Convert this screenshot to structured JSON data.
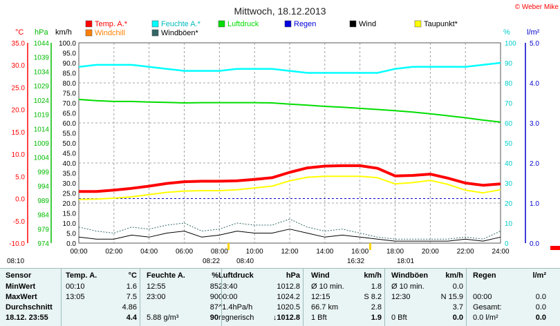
{
  "chart_data": {
    "type": "line",
    "title": "Mittwoch, 18.12.2013",
    "copyright": "© Weber Mike",
    "axes": {
      "temp": {
        "unit": "°C",
        "min": -10,
        "max": 35,
        "ticks": [
          "35.0",
          "30.0",
          "25.0",
          "20.0",
          "15.0",
          "10.0",
          "5.0",
          "0.0",
          "-5.0",
          "-10.0"
        ],
        "color": "#ff0000"
      },
      "pressure": {
        "unit": "hPa",
        "min": 974,
        "max": 1044,
        "ticks": [
          "1044",
          "1039",
          "1034",
          "1029",
          "1024",
          "1019",
          "1014",
          "1009",
          "1004",
          "999",
          "994",
          "989",
          "984",
          "979",
          "974"
        ],
        "color": "#00bb00"
      },
      "wind": {
        "unit": "km/h",
        "min": 0,
        "max": 100,
        "ticks": [
          "100.0",
          "95.0",
          "90.0",
          "85.0",
          "80.0",
          "75.0",
          "70.0",
          "65.0",
          "60.0",
          "55.0",
          "50.0",
          "45.0",
          "40.0",
          "35.0",
          "30.0",
          "25.0",
          "20.0",
          "15.0",
          "10.0",
          "5.0",
          "0.0"
        ],
        "color": "#000000"
      },
      "humidity": {
        "unit": "%",
        "min": 0,
        "max": 100,
        "ticks": [
          "100",
          "90",
          "80",
          "70",
          "60",
          "50",
          "40",
          "30",
          "20",
          "10",
          "0"
        ],
        "color": "#00cccc"
      },
      "rain": {
        "unit": "l/m²",
        "min": 0,
        "max": 5,
        "ticks": [
          "5.0",
          "4.0",
          "3.0",
          "2.0",
          "1.0",
          "0.0"
        ],
        "color": "#0000cc"
      }
    },
    "x_ticks": [
      "00:00",
      "02:00",
      "04:00",
      "06:00",
      "08:00",
      "10:00",
      "12:00",
      "14:00",
      "16:00",
      "18:00",
      "20:00",
      "22:00",
      "24:00"
    ],
    "legend": [
      {
        "name": "Temp. A.*",
        "color": "#ff0000"
      },
      {
        "name": "Feuchte A.*",
        "color": "#00ffff"
      },
      {
        "name": "Luftdruck",
        "color": "#00dd00"
      },
      {
        "name": "Regen",
        "color": "#0000dd"
      },
      {
        "name": "Wind",
        "color": "#000000"
      },
      {
        "name": "Taupunkt*",
        "color": "#ffff00"
      },
      {
        "name": "Windchill",
        "color": "#ff8000"
      },
      {
        "name": "Windböen*",
        "color": "#336666"
      }
    ],
    "series": [
      {
        "name": "Feuchte A.*",
        "axis": "humidity",
        "color": "#00ffff",
        "x": [
          0,
          1,
          2,
          3,
          4,
          5,
          6,
          7,
          8,
          9,
          10,
          11,
          12,
          13,
          14,
          15,
          16,
          17,
          18,
          19,
          20,
          21,
          22,
          23,
          24
        ],
        "y": [
          88,
          89,
          89,
          89,
          88,
          87,
          86,
          86,
          86,
          87,
          87,
          87,
          86,
          85,
          85,
          85,
          85,
          85,
          87,
          88,
          88,
          88,
          88,
          89,
          90
        ]
      },
      {
        "name": "Luftdruck",
        "axis": "pressure",
        "color": "#00dd00",
        "x": [
          0,
          1,
          2,
          3,
          4,
          5,
          6,
          7,
          8,
          9,
          10,
          11,
          12,
          13,
          14,
          15,
          16,
          17,
          18,
          19,
          20,
          21,
          22,
          23,
          24
        ],
        "y": [
          1024.2,
          1023.8,
          1023.5,
          1023.5,
          1023.3,
          1023.2,
          1023.0,
          1023.1,
          1023.1,
          1023.1,
          1023.1,
          1023.0,
          1022.6,
          1022.2,
          1021.8,
          1021.5,
          1021.1,
          1020.7,
          1020.3,
          1019.8,
          1019.2,
          1018.5,
          1017.8,
          1017.0,
          1016.3
        ]
      },
      {
        "name": "Temp. A.*",
        "axis": "temp",
        "color": "#ff0000",
        "x": [
          0,
          1,
          2,
          3,
          4,
          5,
          6,
          7,
          8,
          9,
          10,
          11,
          12,
          13,
          14,
          15,
          16,
          17,
          18,
          19,
          20,
          21,
          22,
          23,
          24
        ],
        "y": [
          1.6,
          1.6,
          1.9,
          2.3,
          2.8,
          3.4,
          3.8,
          3.9,
          3.9,
          4.0,
          4.3,
          4.7,
          5.9,
          6.9,
          7.3,
          7.4,
          7.4,
          6.8,
          5.1,
          5.2,
          5.5,
          4.6,
          3.5,
          3.0,
          3.3
        ]
      },
      {
        "name": "Taupunkt*",
        "axis": "temp",
        "color": "#ffff00",
        "x": [
          0,
          1,
          2,
          3,
          4,
          5,
          6,
          7,
          8,
          9,
          10,
          11,
          12,
          13,
          14,
          15,
          16,
          17,
          18,
          19,
          20,
          21,
          22,
          23,
          24
        ],
        "y": [
          -0.2,
          -0.1,
          0.1,
          0.4,
          0.9,
          1.4,
          1.7,
          1.8,
          1.8,
          2.0,
          2.4,
          2.8,
          4.0,
          4.8,
          5.0,
          5.0,
          5.0,
          4.7,
          3.3,
          3.6,
          4.1,
          3.2,
          1.9,
          1.3,
          2.0
        ]
      },
      {
        "name": "Wind",
        "axis": "wind",
        "color": "#000000",
        "x": [
          0,
          1,
          2,
          3,
          4,
          5,
          6,
          7,
          8,
          9,
          10,
          11,
          12,
          13,
          14,
          15,
          16,
          17,
          18,
          19,
          20,
          21,
          22,
          23,
          24
        ],
        "y": [
          3,
          2,
          2,
          4,
          3,
          5,
          6,
          3,
          4,
          6,
          5,
          5,
          7,
          5,
          3,
          4,
          3,
          2,
          1,
          1,
          1,
          1,
          2,
          1,
          3
        ]
      },
      {
        "name": "Windböen*",
        "axis": "wind",
        "color": "#336666",
        "x": [
          0,
          1,
          2,
          3,
          4,
          5,
          6,
          7,
          8,
          9,
          10,
          11,
          12,
          13,
          14,
          15,
          16,
          17,
          18,
          19,
          20,
          21,
          22,
          23,
          24
        ],
        "y": [
          8,
          6,
          5,
          8,
          7,
          9,
          10,
          6,
          7,
          10,
          9,
          9,
          12,
          8,
          6,
          7,
          5,
          3,
          2,
          2,
          2,
          2,
          3,
          2,
          6
        ]
      }
    ],
    "markers": {
      "sunrise": "08:22",
      "sunset": "16:32",
      "labels": [
        "08:10",
        "08:22",
        "08:40",
        "16:32",
        "18:01"
      ]
    }
  },
  "table": {
    "headers": [
      "Sensor",
      "Temp. A.",
      "°C",
      "Feuchte A.",
      "%",
      "Luftdruck",
      "hPa",
      "Wind",
      "km/h",
      "Windböen",
      "km/h",
      "Regen",
      "l/m²"
    ],
    "rows": [
      {
        "label": "MinWert",
        "c": [
          "00:10",
          "1.6",
          "12:55",
          "85",
          "23:40",
          "1012.8",
          "Ø 10 min.",
          "1.8",
          "Ø 10 min.",
          "0.0",
          "",
          ""
        ]
      },
      {
        "label": "MaxWert",
        "c": [
          "13:05",
          "7.5",
          "23:00",
          "90",
          "00:00",
          "1024.2",
          "12:15",
          "S 8.2",
          "12:30",
          "N 15.9",
          "00:00",
          "0.0"
        ]
      },
      {
        "label": "Durchschnitt",
        "c": [
          "",
          "4.86",
          "",
          "87",
          "^1.4hPa/h",
          "1020.5",
          "66.7 km",
          "2.8",
          "",
          "3.7",
          "Gesamt:",
          "0.0"
        ]
      },
      {
        "label": "18.12. 23:55",
        "c": [
          "",
          "4.4",
          "5.88 g/m³",
          "90",
          "regnerisch",
          "↓1012.8",
          "1 Bft",
          "1.9",
          "0 Bft",
          "0.0",
          "0.0 l/m²",
          "0.0"
        ]
      }
    ]
  }
}
